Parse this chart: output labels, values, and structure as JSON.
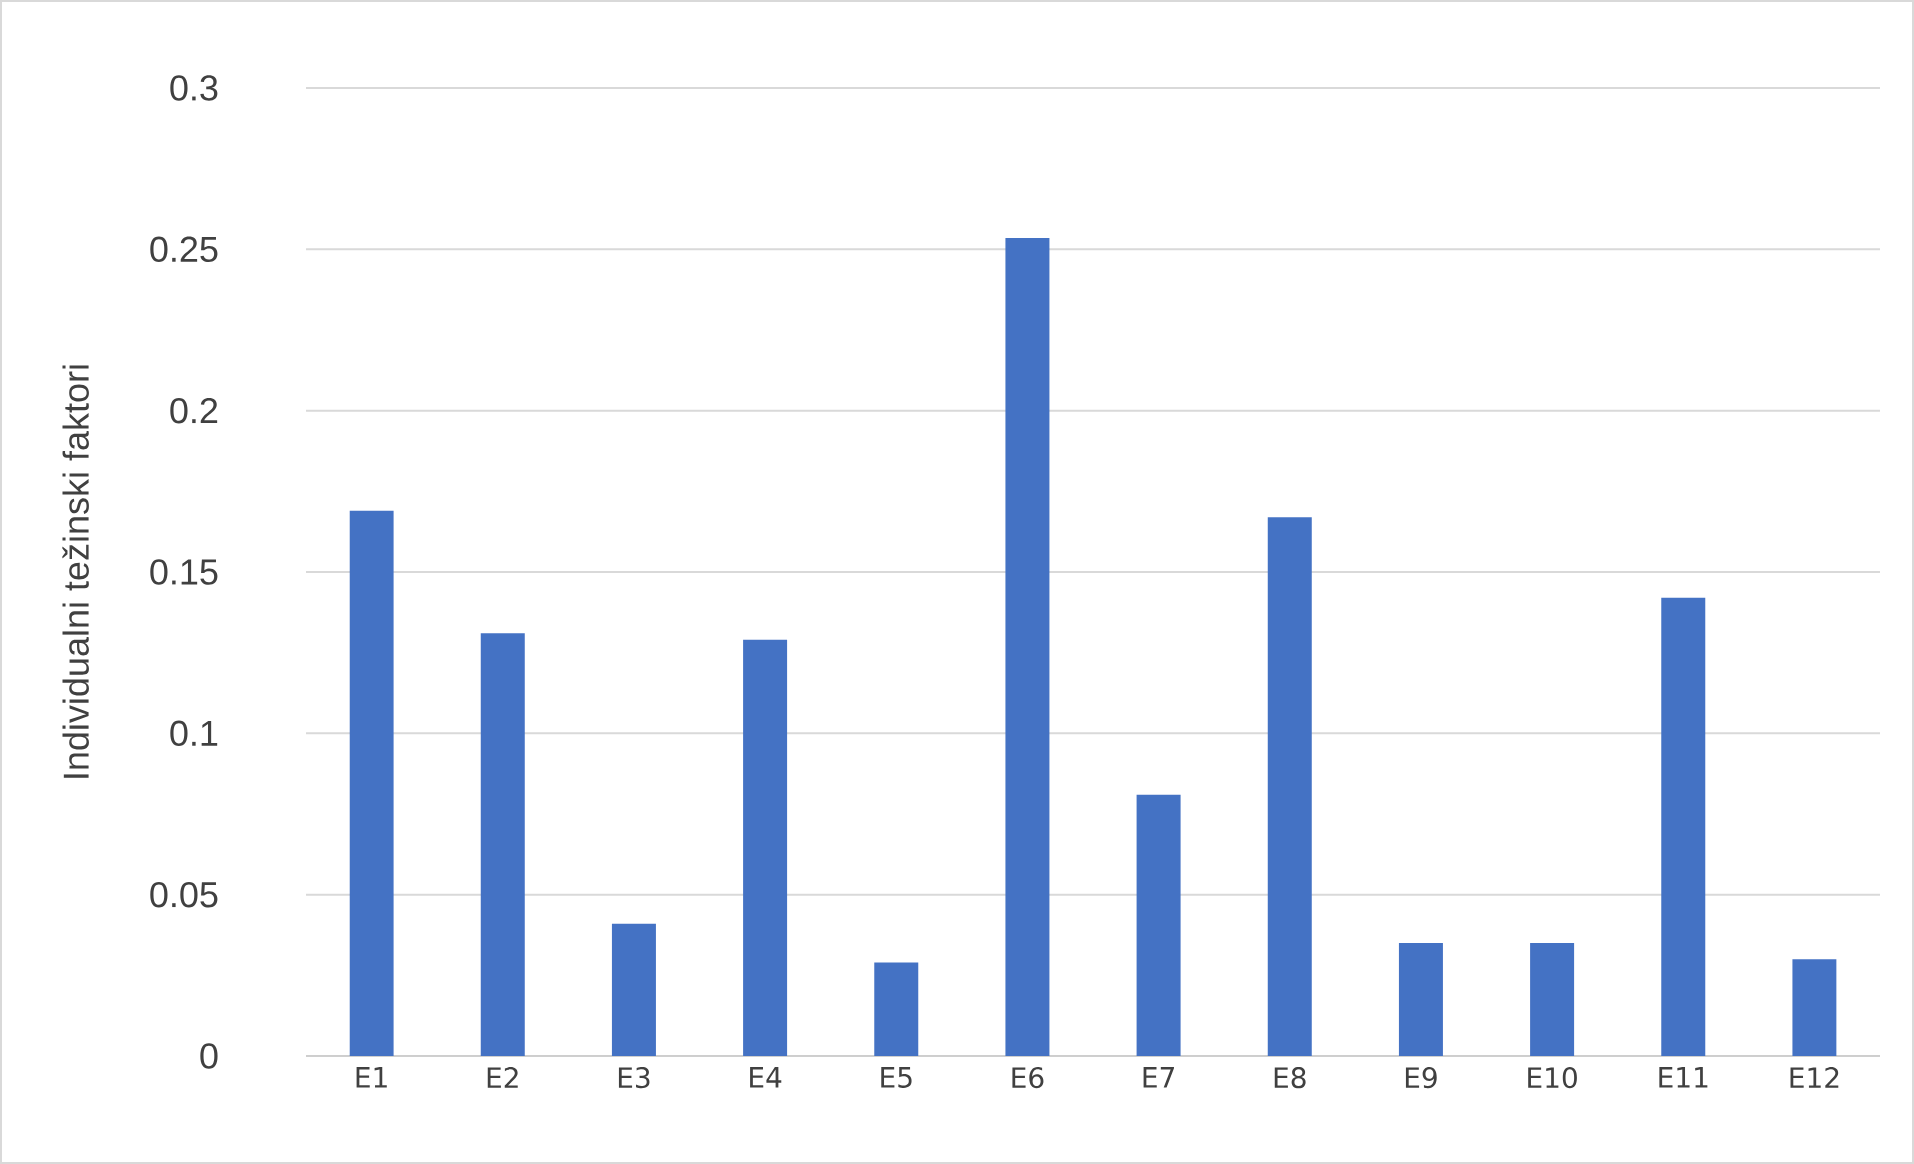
{
  "chart_data": {
    "type": "bar",
    "ylabel": "Individualni težinski faktori",
    "categories": [
      "E1",
      "E2",
      "E3",
      "E4",
      "E5",
      "E6",
      "E7",
      "E8",
      "E9",
      "E10",
      "E11",
      "E12"
    ],
    "values": [
      0.169,
      0.131,
      0.041,
      0.129,
      0.029,
      0.2535,
      0.081,
      0.167,
      0.035,
      0.035,
      0.142,
      0.03
    ],
    "color": "#4472c4",
    "ylim": [
      0,
      0.3
    ],
    "yticks": [
      0,
      0.05,
      0.1,
      0.15,
      0.2,
      0.25,
      0.3
    ],
    "grid": "y"
  }
}
